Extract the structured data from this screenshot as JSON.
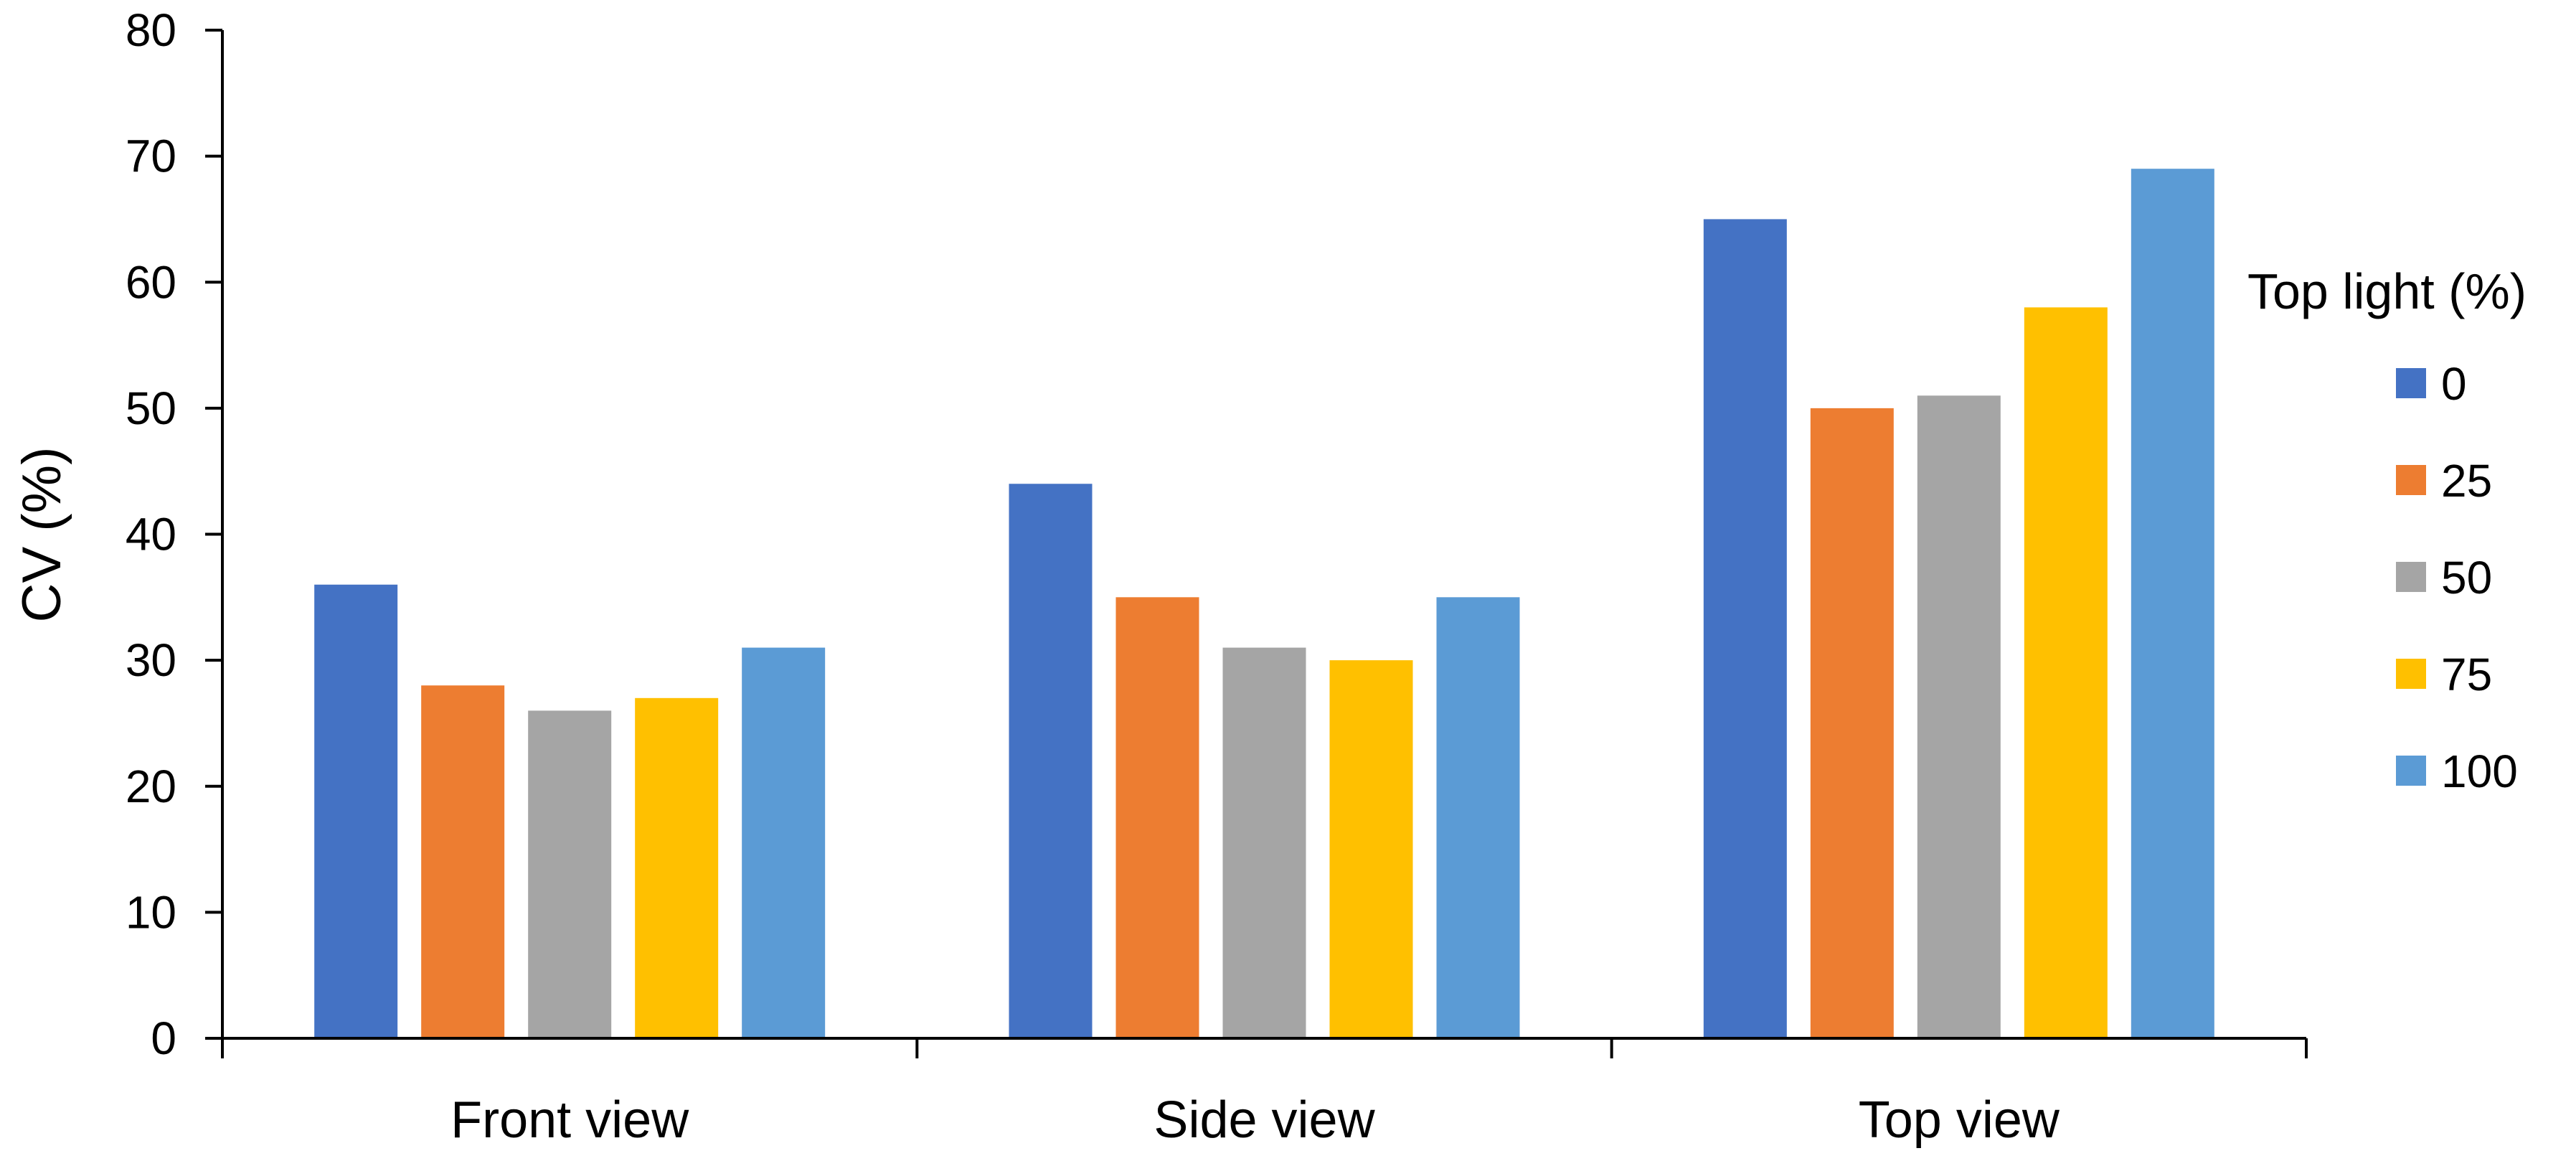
{
  "chart_data": {
    "type": "bar",
    "categories": [
      "Front view",
      "Side view",
      "Top view"
    ],
    "ylabel": "CV (%)",
    "xlabel": "",
    "ylim": [
      0,
      80
    ],
    "yticks": [
      0,
      10,
      20,
      30,
      40,
      50,
      60,
      70,
      80
    ],
    "grid": false,
    "legend": {
      "title": "Top light (%)",
      "placement": "right"
    },
    "series": [
      {
        "name": "0",
        "color": "#4472C4",
        "values": [
          36,
          44,
          65
        ]
      },
      {
        "name": "25",
        "color": "#ED7D31",
        "values": [
          28,
          35,
          50
        ]
      },
      {
        "name": "50",
        "color": "#A5A5A5",
        "values": [
          26,
          31,
          51
        ]
      },
      {
        "name": "75",
        "color": "#FFC000",
        "values": [
          27,
          30,
          58
        ]
      },
      {
        "name": "100",
        "color": "#5B9BD5",
        "values": [
          31,
          35,
          69
        ]
      }
    ]
  }
}
